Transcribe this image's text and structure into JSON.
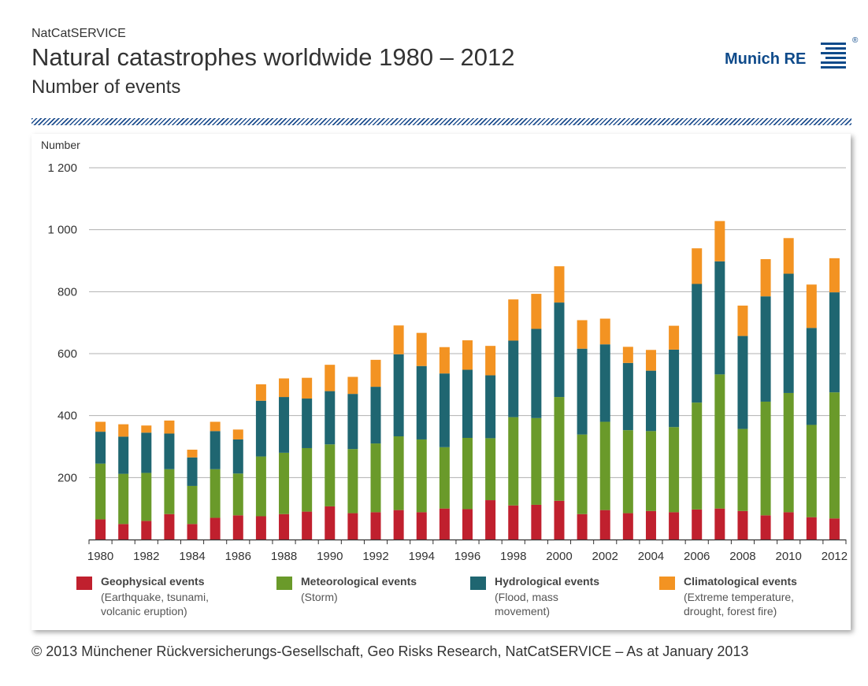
{
  "header": {
    "service": "NatCatSERVICE",
    "title": "Natural catastrophes worldwide 1980 – 2012",
    "subtitle": "Number of events"
  },
  "logo": {
    "text": "Munich RE",
    "reg": "®"
  },
  "footer": "© 2013 Münchener Rückversicherungs-Gesellschaft, Geo Risks Research, NatCatSERVICE – As at January 2013",
  "legend": [
    {
      "title": "Geophysical events",
      "desc": "(Earthquake, tsunami, volcanic eruption)"
    },
    {
      "title": "Meteorological events",
      "desc": "(Storm)"
    },
    {
      "title": "Hydrological events",
      "desc": "(Flood, mass movement)"
    },
    {
      "title": "Climatological events",
      "desc": "(Extreme temperature, drought, forest fire)"
    }
  ],
  "chart_data": {
    "type": "bar",
    "stacked": true,
    "ylabel": "Number",
    "ylim": [
      0,
      1200
    ],
    "yticks": [
      200,
      400,
      600,
      800,
      1000,
      1200
    ],
    "ytick_labels": [
      "200",
      "400",
      "600",
      "800",
      "1 000",
      "1 200"
    ],
    "categories": [
      "1980",
      "1981",
      "1982",
      "1983",
      "1984",
      "1985",
      "1986",
      "1987",
      "1988",
      "1989",
      "1990",
      "1991",
      "1992",
      "1993",
      "1994",
      "1995",
      "1996",
      "1997",
      "1998",
      "1999",
      "2000",
      "2001",
      "2002",
      "2003",
      "2004",
      "2005",
      "2006",
      "2007",
      "2008",
      "2009",
      "2010",
      "2011",
      "2012"
    ],
    "x_tick_labels": [
      "1980",
      "1982",
      "1984",
      "1986",
      "1988",
      "1990",
      "1992",
      "1994",
      "1996",
      "1998",
      "2000",
      "2002",
      "2004",
      "2006",
      "2008",
      "2010",
      "2012"
    ],
    "series": [
      {
        "name": "Geophysical events",
        "color": "#c0202e",
        "values": [
          65,
          50,
          60,
          82,
          50,
          70,
          78,
          75,
          82,
          90,
          107,
          85,
          88,
          95,
          88,
          100,
          98,
          127,
          110,
          112,
          125,
          82,
          95,
          85,
          92,
          88,
          97,
          100,
          92,
          78,
          88,
          72,
          68
        ]
      },
      {
        "name": "Meteorological events",
        "color": "#6a9a2a",
        "values": [
          180,
          162,
          155,
          145,
          123,
          157,
          135,
          193,
          198,
          205,
          200,
          207,
          222,
          238,
          235,
          198,
          230,
          200,
          285,
          280,
          335,
          257,
          285,
          268,
          258,
          275,
          345,
          433,
          265,
          367,
          385,
          298,
          407
        ]
      },
      {
        "name": "Hydrological events",
        "color": "#1f6671",
        "values": [
          103,
          120,
          130,
          115,
          92,
          123,
          110,
          180,
          180,
          160,
          172,
          178,
          183,
          265,
          237,
          238,
          220,
          203,
          247,
          288,
          305,
          277,
          250,
          217,
          195,
          250,
          383,
          365,
          300,
          340,
          385,
          313,
          323
        ]
      },
      {
        "name": "Climatological events",
        "color": "#f39322",
        "values": [
          32,
          40,
          23,
          42,
          25,
          30,
          32,
          53,
          60,
          67,
          85,
          55,
          87,
          93,
          107,
          85,
          95,
          95,
          133,
          113,
          117,
          92,
          83,
          52,
          67,
          77,
          115,
          130,
          98,
          120,
          115,
          140,
          110
        ]
      }
    ]
  }
}
